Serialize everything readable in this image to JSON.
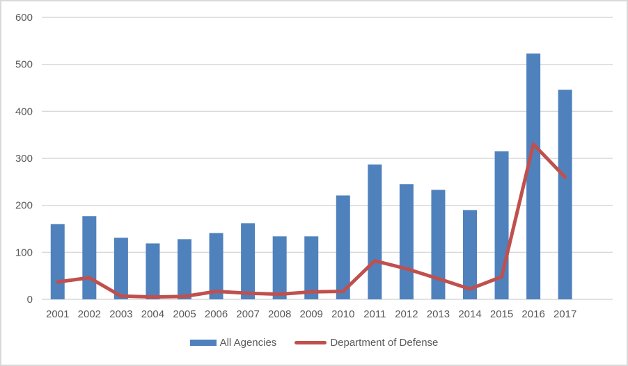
{
  "chart_data": {
    "type": "bar",
    "title": "",
    "xlabel": "",
    "ylabel": "",
    "categories": [
      "2001",
      "2002",
      "2003",
      "2004",
      "2005",
      "2006",
      "2007",
      "2008",
      "2009",
      "2010",
      "2011",
      "2012",
      "2013",
      "2014",
      "2015",
      "2016",
      "2017"
    ],
    "series": [
      {
        "name": "All Agencies",
        "type": "bar",
        "color": "#4f81bd",
        "values": [
          160,
          177,
          131,
          119,
          128,
          141,
          162,
          134,
          134,
          221,
          287,
          245,
          233,
          190,
          315,
          523,
          446
        ]
      },
      {
        "name": "Department of Defense",
        "type": "line",
        "color": "#c0504d",
        "values": [
          37,
          46,
          7,
          5,
          6,
          17,
          13,
          11,
          16,
          17,
          82,
          65,
          44,
          22,
          48,
          330,
          260
        ]
      }
    ],
    "ylim": [
      0,
      600
    ],
    "ytick_step": 100,
    "yticks": [
      "0",
      "100",
      "200",
      "300",
      "400",
      "500",
      "600"
    ],
    "grid": true,
    "legend_position": "bottom"
  },
  "style": {
    "gridline_color": "#d9d9d9",
    "axis_text_color": "#595959",
    "background_color": "#ffffff",
    "border_color": "#d9d9d9"
  }
}
